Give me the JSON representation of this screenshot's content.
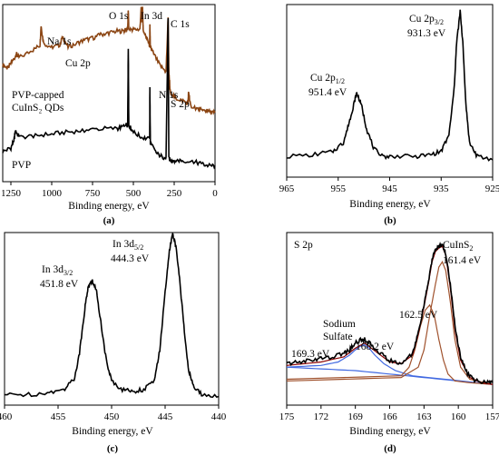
{
  "chart_data": [
    {
      "type": "line",
      "panel_label": "(a)",
      "xlabel": "Binding energy, eV",
      "xlim": [
        1300,
        0
      ],
      "reversed_x": true,
      "x_ticks": [
        "1250",
        "1000",
        "750",
        "500",
        "250",
        "0"
      ],
      "x_tick_values": [
        1250,
        1000,
        750,
        500,
        250,
        0
      ],
      "series": [
        {
          "name": "PVP-capped CuInS2 QDs",
          "name_lines": [
            "PVP-capped",
            "CuInS₂ QDs"
          ],
          "color": "#8b4513",
          "x": [
            1300,
            1270,
            1240,
            1215,
            1200,
            1120,
            1072,
            1065,
            1050,
            1000,
            950,
            935,
            900,
            850,
            800,
            750,
            700,
            650,
            600,
            560,
            535,
            531,
            528,
            500,
            460,
            452,
            448,
            444,
            440,
            420,
            400,
            399,
            396,
            380,
            340,
            300,
            287,
            283,
            275,
            240,
            200,
            165,
            162,
            150,
            100,
            80,
            50,
            20,
            0
          ],
          "y": [
            0.66,
            0.64,
            0.68,
            0.72,
            0.7,
            0.74,
            0.77,
            0.88,
            0.78,
            0.76,
            0.77,
            0.82,
            0.76,
            0.78,
            0.8,
            0.81,
            0.83,
            0.84,
            0.85,
            0.85,
            0.86,
            0.97,
            0.86,
            0.86,
            0.86,
            0.98,
            0.9,
            0.99,
            0.86,
            0.81,
            0.77,
            0.89,
            0.76,
            0.73,
            0.66,
            0.62,
            0.93,
            0.62,
            0.51,
            0.47,
            0.46,
            0.44,
            0.51,
            0.43,
            0.41,
            0.4,
            0.4,
            0.39,
            0.39
          ]
        },
        {
          "name": "PVP",
          "color": "#000000",
          "x": [
            1300,
            1250,
            1230,
            1222,
            1200,
            1100,
            1000,
            900,
            800,
            700,
            600,
            560,
            535,
            531,
            528,
            500,
            450,
            400,
            399,
            396,
            360,
            320,
            300,
            287,
            283,
            270,
            240,
            200,
            120,
            80,
            40,
            0
          ],
          "y": [
            0.17,
            0.19,
            0.24,
            0.29,
            0.25,
            0.26,
            0.27,
            0.28,
            0.29,
            0.3,
            0.3,
            0.31,
            0.32,
            0.76,
            0.32,
            0.28,
            0.25,
            0.24,
            0.54,
            0.22,
            0.16,
            0.14,
            0.13,
            0.93,
            0.13,
            0.12,
            0.12,
            0.12,
            0.11,
            0.1,
            0.09,
            0.09
          ]
        }
      ],
      "annotations": [
        {
          "text": "Na 1s",
          "x": 1072,
          "y": 0.89
        },
        {
          "text": "Cu 2p",
          "x": 935,
          "y": 0.83
        },
        {
          "text": "O 1s",
          "x": 531,
          "y": 0.99
        },
        {
          "text": "In 3d",
          "x": 444,
          "y": 0.99
        },
        {
          "text": "C 1s",
          "x": 287,
          "y": 0.94
        },
        {
          "text": "N 1s",
          "x": 399,
          "y": 0.91
        },
        {
          "text": "S 2p",
          "x": 162,
          "y": 0.53
        }
      ]
    },
    {
      "type": "line",
      "panel_label": "(b)",
      "xlabel": "Binding energy, eV",
      "xlim": [
        965,
        925
      ],
      "reversed_x": true,
      "x_ticks": [
        "965",
        "955",
        "945",
        "935",
        "925"
      ],
      "x_tick_values": [
        965,
        955,
        945,
        935,
        925
      ],
      "series": [
        {
          "name": "",
          "color": "#000000",
          "x": [
            965,
            960,
            956,
            954,
            953,
            952,
            951.4,
            950.5,
            949.5,
            948,
            946,
            944,
            940,
            937,
            935,
            933.5,
            932.5,
            932,
            931.3,
            930.8,
            930.2,
            929.5,
            928,
            925
          ],
          "y": [
            0.12,
            0.13,
            0.15,
            0.2,
            0.3,
            0.42,
            0.49,
            0.42,
            0.28,
            0.16,
            0.12,
            0.12,
            0.12,
            0.13,
            0.15,
            0.24,
            0.5,
            0.78,
            0.96,
            0.78,
            0.42,
            0.2,
            0.12,
            0.1
          ]
        }
      ],
      "annotations": [
        {
          "line1": "Cu 2p",
          "sub": "1/2",
          "line2": "951.4 eV",
          "x": 951.4,
          "y": 0.5
        },
        {
          "line1": "Cu 2p",
          "sub": "3/2",
          "line2": "931.3 eV",
          "x": 931.3,
          "y": 0.97
        }
      ]
    },
    {
      "type": "line",
      "panel_label": "(c)",
      "xlabel": "Binding energy, eV",
      "xlim": [
        460,
        440
      ],
      "reversed_x": true,
      "x_ticks": [
        "460",
        "455",
        "450",
        "445",
        "440"
      ],
      "x_tick_values": [
        460,
        455,
        450,
        445,
        440
      ],
      "series": [
        {
          "name": "",
          "color": "#000000",
          "x": [
            460,
            458,
            456,
            454.5,
            453.5,
            453,
            452.5,
            452.2,
            451.8,
            451.4,
            451,
            450.5,
            450,
            449,
            448,
            447,
            446,
            445.5,
            445,
            444.6,
            444.3,
            444,
            443.6,
            443.2,
            442.8,
            442.3,
            441.5,
            440
          ],
          "y": [
            0.06,
            0.06,
            0.07,
            0.09,
            0.15,
            0.3,
            0.56,
            0.68,
            0.72,
            0.66,
            0.48,
            0.26,
            0.14,
            0.09,
            0.08,
            0.09,
            0.14,
            0.32,
            0.65,
            0.9,
            0.99,
            0.92,
            0.7,
            0.42,
            0.2,
            0.1,
            0.06,
            0.05
          ]
        }
      ],
      "annotations": [
        {
          "line1": "In 3d",
          "sub": "3/2",
          "line2": "451.8 eV",
          "x": 451.8,
          "y": 0.72
        },
        {
          "line1": "In 3d",
          "sub": "5/2",
          "line2": "444.3 eV",
          "x": 444.3,
          "y": 0.99
        }
      ]
    },
    {
      "type": "line",
      "panel_label": "(d)",
      "title": "S 2p",
      "xlabel": "Binding energy, eV",
      "xlim": [
        175,
        157
      ],
      "reversed_x": true,
      "x_ticks": [
        "175",
        "172",
        "169",
        "166",
        "163",
        "160",
        "157"
      ],
      "x_tick_values": [
        175,
        172,
        169,
        166,
        163,
        160,
        157
      ],
      "series": [
        {
          "name": "",
          "role": "measured",
          "color": "#000000",
          "x": [
            175,
            174,
            173,
            172,
            171,
            170,
            169.5,
            169,
            168.5,
            168.2,
            167.8,
            167,
            166,
            165,
            164,
            163.5,
            163,
            162.6,
            162.3,
            162,
            161.7,
            161.4,
            161.1,
            160.7,
            160.3,
            159.8,
            159.2,
            158.5,
            157.5,
            157
          ],
          "y": [
            0.24,
            0.25,
            0.26,
            0.27,
            0.28,
            0.3,
            0.32,
            0.36,
            0.38,
            0.38,
            0.36,
            0.31,
            0.26,
            0.24,
            0.3,
            0.42,
            0.58,
            0.72,
            0.84,
            0.9,
            0.92,
            0.93,
            0.88,
            0.7,
            0.46,
            0.28,
            0.18,
            0.14,
            0.13,
            0.13
          ]
        },
        {
          "name": "",
          "role": "fit-envelope",
          "color": "#8b0000",
          "x": [
            175,
            172,
            170,
            169,
            168.2,
            167,
            166,
            165,
            164,
            163.5,
            163,
            162.6,
            162.3,
            162,
            161.7,
            161.4,
            161.1,
            160.7,
            160.3,
            159.8,
            159,
            158,
            157
          ],
          "y": [
            0.23,
            0.25,
            0.28,
            0.33,
            0.36,
            0.3,
            0.25,
            0.24,
            0.29,
            0.41,
            0.57,
            0.71,
            0.83,
            0.89,
            0.91,
            0.92,
            0.87,
            0.68,
            0.44,
            0.26,
            0.16,
            0.13,
            0.12
          ]
        },
        {
          "name": "",
          "role": "fit-161.4",
          "color": "#a0522d",
          "x": [
            175,
            165,
            163.5,
            163,
            162.5,
            162,
            161.7,
            161.4,
            161.1,
            160.7,
            160.3,
            159.8,
            159,
            157
          ],
          "y": [
            0.14,
            0.16,
            0.22,
            0.32,
            0.52,
            0.7,
            0.8,
            0.83,
            0.78,
            0.6,
            0.38,
            0.22,
            0.15,
            0.12
          ]
        },
        {
          "name": "",
          "role": "fit-162.5",
          "color": "#a0522d",
          "x": [
            175,
            165,
            164.3,
            163.8,
            163.3,
            162.9,
            162.5,
            162.1,
            161.7,
            161.3,
            160.9,
            160.3,
            159,
            157
          ],
          "y": [
            0.15,
            0.17,
            0.22,
            0.32,
            0.46,
            0.55,
            0.58,
            0.52,
            0.38,
            0.26,
            0.18,
            0.14,
            0.13,
            0.12
          ]
        },
        {
          "name": "",
          "role": "fit-168.2",
          "color": "#4169e1",
          "x": [
            175,
            172,
            170.5,
            169.5,
            169,
            168.6,
            168.2,
            167.8,
            167.3,
            166.5,
            165.5,
            164,
            157
          ],
          "y": [
            0.22,
            0.23,
            0.25,
            0.29,
            0.32,
            0.34,
            0.35,
            0.33,
            0.29,
            0.24,
            0.2,
            0.17,
            0.12
          ]
        },
        {
          "name": "",
          "role": "baseline",
          "color": "#4169e1",
          "x": [
            175,
            172,
            169,
            166,
            163,
            160,
            157
          ],
          "y": [
            0.22,
            0.21,
            0.2,
            0.18,
            0.16,
            0.14,
            0.12
          ]
        }
      ],
      "annotations": [
        {
          "line1": "CuInS",
          "sub": "2",
          "line2": "161.4 eV"
        },
        {
          "line1": "162.5 eV"
        },
        {
          "line1": "Sodium",
          "line2": "Sulfate"
        },
        {
          "line1": "169.3 eV"
        },
        {
          "line1": "168.2 eV"
        }
      ]
    }
  ]
}
